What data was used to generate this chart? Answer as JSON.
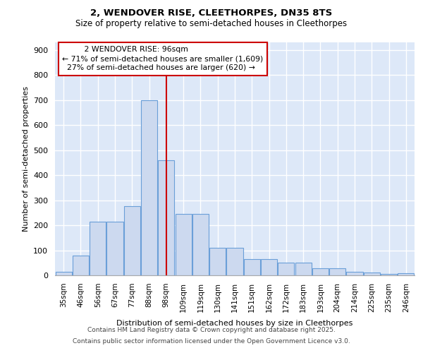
{
  "title1": "2, WENDOVER RISE, CLEETHORPES, DN35 8TS",
  "title2": "Size of property relative to semi-detached houses in Cleethorpes",
  "xlabel": "Distribution of semi-detached houses by size in Cleethorpes",
  "ylabel": "Number of semi-detached properties",
  "categories": [
    "35sqm",
    "46sqm",
    "56sqm",
    "67sqm",
    "77sqm",
    "88sqm",
    "98sqm",
    "109sqm",
    "119sqm",
    "130sqm",
    "141sqm",
    "151sqm",
    "162sqm",
    "172sqm",
    "183sqm",
    "193sqm",
    "204sqm",
    "214sqm",
    "225sqm",
    "235sqm",
    "246sqm"
  ],
  "values": [
    15,
    78,
    214,
    214,
    276,
    700,
    460,
    246,
    246,
    110,
    110,
    65,
    65,
    52,
    52,
    28,
    28,
    14,
    10,
    5,
    8
  ],
  "bar_color": "#ccd9ef",
  "bar_edge_color": "#6a9fd8",
  "red_line_x": 6.0,
  "annotation_title": "2 WENDOVER RISE: 96sqm",
  "annotation_line1": "← 71% of semi-detached houses are smaller (1,609)",
  "annotation_line2": "27% of semi-detached houses are larger (620) →",
  "annotation_box_color": "#ffffff",
  "annotation_box_edge_color": "#cc0000",
  "red_line_color": "#cc0000",
  "ylim": [
    0,
    930
  ],
  "yticks": [
    0,
    100,
    200,
    300,
    400,
    500,
    600,
    700,
    800,
    900
  ],
  "background_color": "#dde8f8",
  "grid_color": "#ffffff",
  "footer1": "Contains HM Land Registry data © Crown copyright and database right 2025.",
  "footer2": "Contains public sector information licensed under the Open Government Licence v3.0."
}
